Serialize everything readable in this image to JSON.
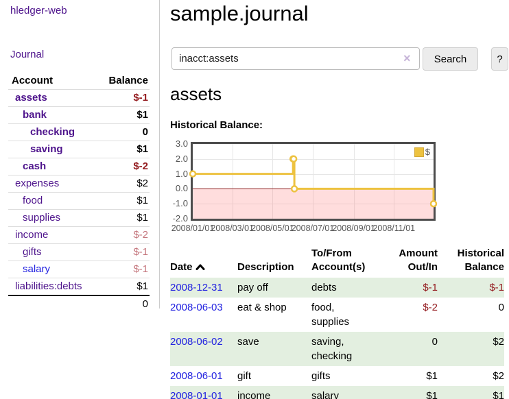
{
  "app_title": "hledger-web",
  "sidebar": {
    "journal_link": "Journal",
    "accounts": {
      "header_account": "Account",
      "header_balance": "Balance",
      "rows": [
        {
          "name": "assets",
          "balance": "$-1",
          "depth": 1,
          "bold": true,
          "name_color": "purple",
          "balance_color": "negative-strong"
        },
        {
          "name": "bank",
          "balance": "$1",
          "depth": 2,
          "bold": true,
          "name_color": "purple",
          "balance_color": "normal"
        },
        {
          "name": "checking",
          "balance": "0",
          "depth": 3,
          "bold": true,
          "name_color": "purple",
          "balance_color": "normal"
        },
        {
          "name": "saving",
          "balance": "$1",
          "depth": 3,
          "bold": true,
          "name_color": "purple",
          "balance_color": "normal"
        },
        {
          "name": "cash",
          "balance": "$-2",
          "depth": 2,
          "bold": true,
          "name_color": "purple",
          "balance_color": "negative-strong"
        },
        {
          "name": "expenses",
          "balance": "$2",
          "depth": 1,
          "bold": false,
          "name_color": "purple",
          "balance_color": "normal"
        },
        {
          "name": "food",
          "balance": "$1",
          "depth": 2,
          "bold": false,
          "name_color": "purple",
          "balance_color": "normal"
        },
        {
          "name": "supplies",
          "balance": "$1",
          "depth": 2,
          "bold": false,
          "name_color": "purple",
          "balance_color": "normal"
        },
        {
          "name": "income",
          "balance": "$-2",
          "depth": 1,
          "bold": false,
          "name_color": "purple",
          "balance_color": "negative-soft"
        },
        {
          "name": "gifts",
          "balance": "$-1",
          "depth": 2,
          "bold": false,
          "name_color": "purple",
          "balance_color": "negative-soft"
        },
        {
          "name": "salary",
          "balance": "$-1",
          "depth": 2,
          "bold": false,
          "name_color": "blue",
          "balance_color": "negative-soft"
        },
        {
          "name": "liabilities:debts",
          "balance": "$1",
          "depth": 1,
          "bold": false,
          "name_color": "purple",
          "balance_color": "normal"
        }
      ],
      "total": "0"
    }
  },
  "main": {
    "page_title": "sample.journal",
    "search": {
      "query": "inacct:assets",
      "clear_icon": "×",
      "button": "Search",
      "help_button": "?"
    },
    "account_heading": "assets",
    "chart_title": "Historical Balance:"
  },
  "chart_data": {
    "type": "line",
    "title": "Historical Balance:",
    "step": true,
    "series": [
      {
        "name": "$",
        "points": [
          [
            "2008-01-01",
            1
          ],
          [
            "2008-06-01",
            2
          ],
          [
            "2008-06-02",
            2
          ],
          [
            "2008-06-03",
            0
          ],
          [
            "2008-12-31",
            -1
          ]
        ]
      }
    ],
    "x_range": [
      "2008-01-01",
      "2008-12-31"
    ],
    "ylim": [
      -2,
      3
    ],
    "y_ticks": [
      3.0,
      2.0,
      1.0,
      0.0,
      -1.0,
      -2.0
    ],
    "x_ticks": [
      "2008/01/01",
      "2008/03/01",
      "2008/05/01",
      "2008/07/01",
      "2008/09/01",
      "2008/11/01"
    ],
    "legend": [
      {
        "label": "$",
        "color": "#EDC240"
      }
    ],
    "legend_position": "top-right",
    "grid": true,
    "line_color": "#EDC240",
    "zero_line_color": "#8b1a1a",
    "negative_region_color": "rgba(255,120,120,0.25)"
  },
  "register": {
    "headers": {
      "date": "Date",
      "sort_icon": "chevron-up",
      "description": "Description",
      "accounts": "To/From\nAccount(s)",
      "amount": "Amount\nOut/In",
      "balance": "Historical\nBalance"
    },
    "rows": [
      {
        "date": "2008-12-31",
        "description": "pay off",
        "accounts": "debts",
        "amount": "$-1",
        "balance": "$-1",
        "amount_negative": true,
        "balance_negative": true,
        "shaded": true
      },
      {
        "date": "2008-06-03",
        "description": "eat & shop",
        "accounts": "food, supplies",
        "amount": "$-2",
        "balance": "0",
        "amount_negative": true,
        "balance_negative": false,
        "shaded": false
      },
      {
        "date": "2008-06-02",
        "description": "save",
        "accounts": "saving,\nchecking",
        "amount": "0",
        "balance": "$2",
        "amount_negative": false,
        "balance_negative": false,
        "shaded": true
      },
      {
        "date": "2008-06-01",
        "description": "gift",
        "accounts": "gifts",
        "amount": "$1",
        "balance": "$2",
        "amount_negative": false,
        "balance_negative": false,
        "shaded": false
      },
      {
        "date": "2008-01-01",
        "description": "income",
        "accounts": "salary",
        "amount": "$1",
        "balance": "$1",
        "amount_negative": false,
        "balance_negative": false,
        "shaded": true
      }
    ]
  }
}
